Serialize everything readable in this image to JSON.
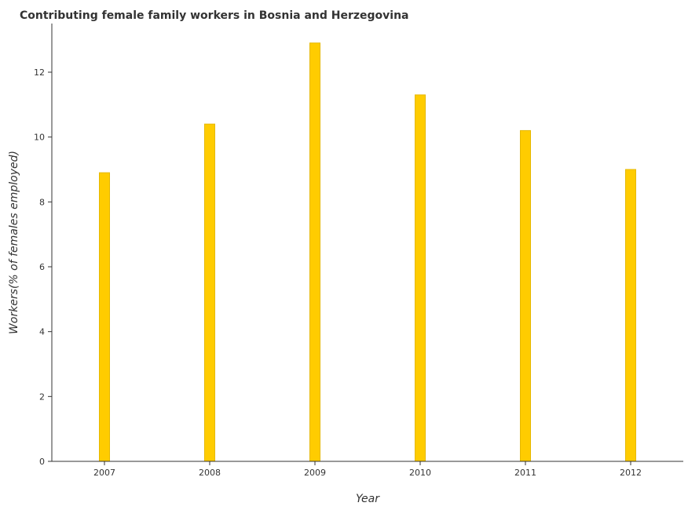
{
  "chart_data": {
    "type": "bar",
    "title": "Contributing female family workers in Bosnia and Herzegovina",
    "xlabel": "Year",
    "ylabel": "Workers(% of females employed)",
    "categories": [
      "2007",
      "2008",
      "2009",
      "2010",
      "2011",
      "2012"
    ],
    "values": [
      8.9,
      10.4,
      12.9,
      11.3,
      10.2,
      9.0
    ],
    "ylim": [
      0,
      13.5
    ],
    "yticks": [
      "0",
      "2",
      "4",
      "6",
      "8",
      "10",
      "12"
    ],
    "grid": false,
    "legend": "none",
    "bar_color": "#ffcc00"
  }
}
